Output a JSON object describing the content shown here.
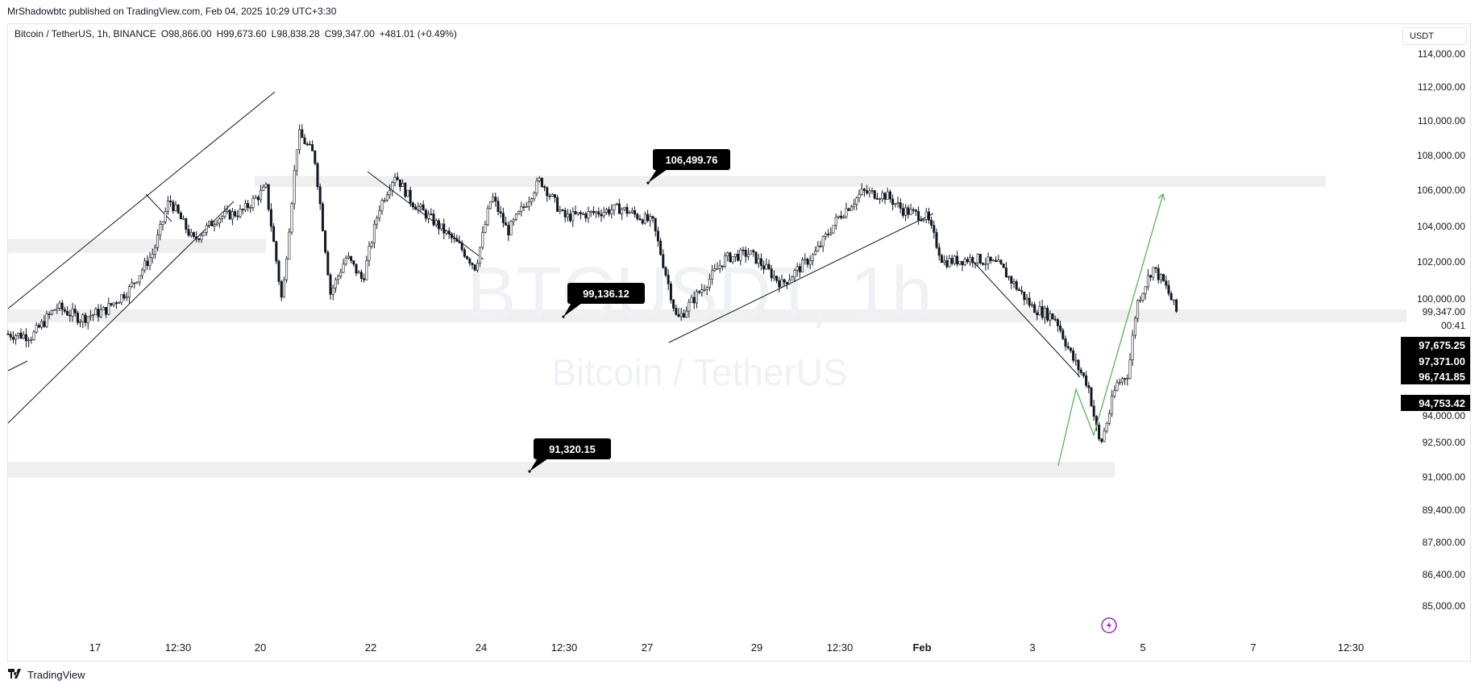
{
  "publisher": "MrShadowbtc published on TradingView.com, Feb 04, 2025 10:29 UTC+3:30",
  "symbol_line": {
    "symbol": "Bitcoin / TetherUS, 1h, BINANCE",
    "open": "O98,866.00",
    "high": "H99,673.60",
    "low": "L98,838.28",
    "close": "C99,347.00",
    "change": "+481.01 (+0.49%)"
  },
  "currency": "USDT",
  "watermark": {
    "ticker": "BTCUSDT, 1h",
    "name": "Bitcoin / TetherUS"
  },
  "footer": {
    "brand": "TradingView",
    "logo_icon": "tradingview-logo-icon"
  },
  "chart_data": {
    "type": "candlestick",
    "price_axis": {
      "ticks": [
        "114,000.00",
        "112,000.00",
        "110,000.00",
        "108,000.00",
        "106,000.00",
        "104,000.00",
        "102,000.00",
        "100,000.00",
        "94,000.00",
        "92,500.00",
        "91,000.00",
        "89,400.00",
        "87,800.00",
        "86,400.00",
        "85,000.00"
      ],
      "tick_values": [
        114000,
        112000,
        110000,
        108000,
        106000,
        104000,
        102000,
        100000,
        94000,
        92500,
        91000,
        89400,
        87800,
        86400,
        85000
      ]
    },
    "time_axis": {
      "ticks": [
        "17",
        "12:30",
        "20",
        "22",
        "24",
        "12:30",
        "27",
        "29",
        "12:30",
        "Feb",
        "3",
        "5",
        "7",
        "12:30"
      ]
    },
    "price_labels": [
      {
        "text": "99,347.00",
        "style": "plain",
        "value": 99347
      },
      {
        "text": "00:41",
        "style": "countdown",
        "value": 99347
      },
      {
        "text": "97,675.25",
        "style": "dark",
        "value": 97675.25
      },
      {
        "text": "97,371.00",
        "style": "dark",
        "value": 97371
      },
      {
        "text": "96,741.85",
        "style": "dark",
        "value": 96741.85
      },
      {
        "text": "94,753.42",
        "style": "dark",
        "value": 94753.42
      }
    ],
    "callouts": [
      {
        "text": "106,499.76",
        "value": 106499.76
      },
      {
        "text": "99,136.12",
        "value": 99136.12
      },
      {
        "text": "91,320.15",
        "value": 91320.15
      }
    ],
    "zones": [
      {
        "name": "resistance",
        "value": 106499.76
      },
      {
        "name": "left-zone",
        "value": 102900
      },
      {
        "name": "support",
        "value": 99136.12
      },
      {
        "name": "demand",
        "value": 91320.15
      }
    ],
    "price_path": [
      [
        0,
        98200
      ],
      [
        30,
        98100
      ],
      [
        60,
        99600
      ],
      [
        90,
        99000
      ],
      [
        120,
        99400
      ],
      [
        150,
        100500
      ],
      [
        180,
        102500
      ],
      [
        200,
        105500
      ],
      [
        230,
        103200
      ],
      [
        260,
        104500
      ],
      [
        290,
        104800
      ],
      [
        320,
        106100
      ],
      [
        340,
        99800
      ],
      [
        360,
        109300
      ],
      [
        380,
        108000
      ],
      [
        400,
        100300
      ],
      [
        420,
        102300
      ],
      [
        440,
        101000
      ],
      [
        460,
        105000
      ],
      [
        480,
        106900
      ],
      [
        500,
        105400
      ],
      [
        530,
        104200
      ],
      [
        560,
        102900
      ],
      [
        580,
        101700
      ],
      [
        600,
        105700
      ],
      [
        620,
        103700
      ],
      [
        640,
        105100
      ],
      [
        660,
        106600
      ],
      [
        690,
        104500
      ],
      [
        720,
        104700
      ],
      [
        760,
        105000
      ],
      [
        800,
        104200
      ],
      [
        830,
        98900
      ],
      [
        860,
        100500
      ],
      [
        890,
        102200
      ],
      [
        920,
        102500
      ],
      [
        960,
        100800
      ],
      [
        1000,
        102400
      ],
      [
        1030,
        104500
      ],
      [
        1060,
        105900
      ],
      [
        1090,
        105700
      ],
      [
        1110,
        104900
      ],
      [
        1140,
        104500
      ],
      [
        1160,
        102000
      ],
      [
        1200,
        102200
      ],
      [
        1230,
        101800
      ],
      [
        1270,
        99600
      ],
      [
        1300,
        99000
      ],
      [
        1320,
        97000
      ],
      [
        1340,
        95600
      ],
      [
        1355,
        92300
      ],
      [
        1375,
        95600
      ],
      [
        1390,
        96200
      ],
      [
        1400,
        99700
      ],
      [
        1420,
        101700
      ],
      [
        1435,
        100800
      ],
      [
        1450,
        99300
      ]
    ]
  }
}
